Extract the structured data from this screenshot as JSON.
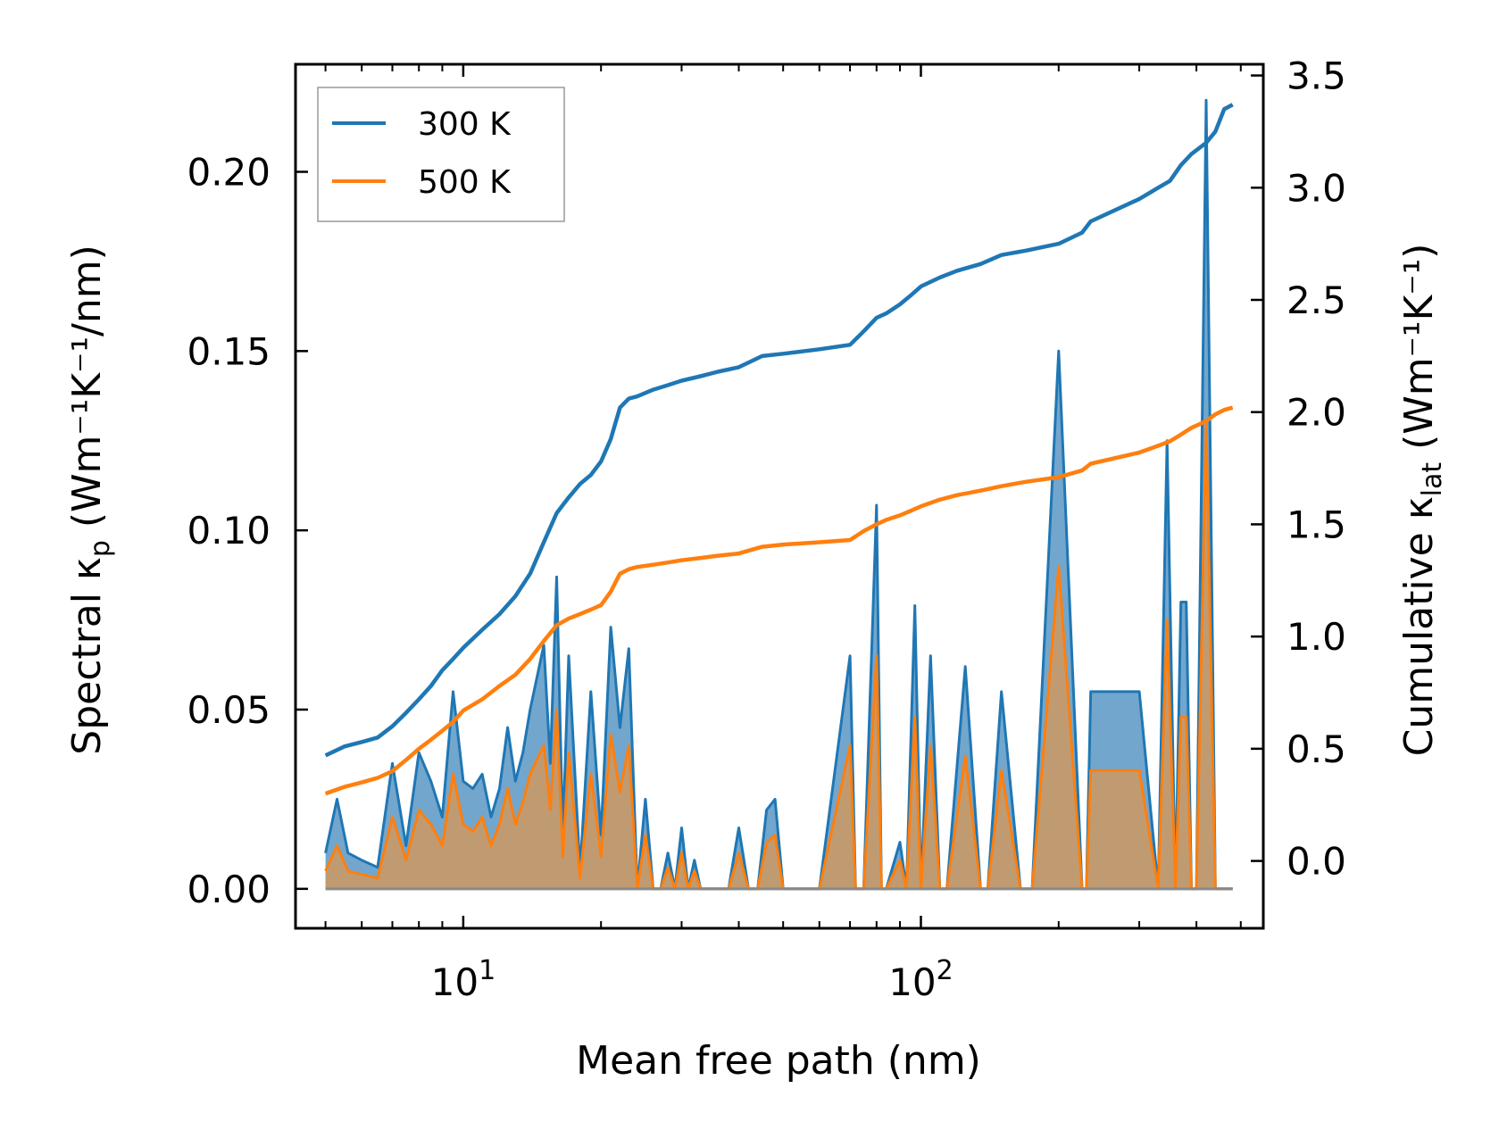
{
  "chart_data": {
    "type": "line",
    "title": "",
    "xlabel": "Mean free path (nm)",
    "ylabel_left": {
      "prefix": "Spectral κ",
      "sub": "p",
      "unit": "(Wm⁻¹K⁻¹/nm)"
    },
    "ylabel_right": {
      "prefix": "Cumulative κ",
      "sub": "lat",
      "unit": "(Wm⁻¹K⁻¹)"
    },
    "xscale": "log",
    "xlim": [
      4.3,
      560
    ],
    "ylim_left": [
      -0.011,
      0.23
    ],
    "ylim_right": [
      -0.3,
      3.55
    ],
    "x_ticks": [
      {
        "base": "10",
        "exp": "1",
        "value": 10
      },
      {
        "base": "10",
        "exp": "2",
        "value": 100
      }
    ],
    "y_ticks_left": [
      "0.00",
      "0.05",
      "0.10",
      "0.15",
      "0.20"
    ],
    "y_ticks_right": [
      "0.0",
      "0.5",
      "1.0",
      "1.5",
      "2.0",
      "2.5",
      "3.0",
      "3.5"
    ],
    "legend": {
      "placement": "top-left",
      "entries": [
        "300 K",
        "500 K"
      ]
    },
    "colors": {
      "s300": "#1f77b4",
      "s500": "#ff7f0e",
      "fill300": "#5b96c4",
      "fill500": "#c49a6c"
    },
    "spectral": {
      "axis": "left",
      "x": [
        5.0,
        5.3,
        5.6,
        6.0,
        6.5,
        7.0,
        7.5,
        8.0,
        8.5,
        9.0,
        9.5,
        10.0,
        10.5,
        11.0,
        11.5,
        12.0,
        12.5,
        13.0,
        13.5,
        14.0,
        15.0,
        15.5,
        16.0,
        16.5,
        17.0,
        18.0,
        19.0,
        20.0,
        21.0,
        22.0,
        23.0,
        24.0,
        25.0,
        26.0,
        27.0,
        28.0,
        29.0,
        30.0,
        31.0,
        32.0,
        33.0,
        34.0,
        36.0,
        38.0,
        40.0,
        42.0,
        44.0,
        46.0,
        48.0,
        50.0,
        60.0,
        70.0,
        72.0,
        75.0,
        80.0,
        82.0,
        84.0,
        90.0,
        93.0,
        97.0,
        100.0,
        105.0,
        110.0,
        114.0,
        125.0,
        135.0,
        140.0,
        150.0,
        165.0,
        170.0,
        175.0,
        200.0,
        225.0,
        230.0,
        235.0,
        300.0,
        330.0,
        345.0,
        360.0,
        370.0,
        380.0,
        390.0,
        400.0,
        420.0,
        440.0,
        460.0,
        470.0,
        480.0
      ],
      "s300": [
        0.01,
        0.025,
        0.01,
        0.008,
        0.006,
        0.035,
        0.012,
        0.038,
        0.03,
        0.02,
        0.055,
        0.03,
        0.028,
        0.032,
        0.02,
        0.028,
        0.045,
        0.03,
        0.038,
        0.05,
        0.068,
        0.035,
        0.087,
        0.015,
        0.065,
        0.005,
        0.055,
        0.015,
        0.073,
        0.045,
        0.067,
        0.0,
        0.025,
        0.0,
        0.0,
        0.01,
        0.0,
        0.017,
        0.0,
        0.008,
        0.0,
        0.0,
        0.0,
        0.0,
        0.017,
        0.0,
        0.0,
        0.022,
        0.025,
        0.0,
        0.0,
        0.065,
        0.0,
        0.0,
        0.107,
        0.0,
        0.0,
        0.013,
        0.0,
        0.079,
        0.0,
        0.065,
        0.0,
        0.0,
        0.062,
        0.0,
        0.0,
        0.055,
        0.0,
        0.0,
        0.0,
        0.15,
        0.0,
        0.0,
        0.055,
        0.055,
        0.0,
        0.125,
        0.0,
        0.08,
        0.08,
        0.0,
        0.0,
        0.22,
        0.0,
        0.0,
        0.0,
        0.0
      ],
      "s500": [
        0.005,
        0.012,
        0.005,
        0.004,
        0.003,
        0.02,
        0.008,
        0.022,
        0.018,
        0.012,
        0.032,
        0.018,
        0.016,
        0.02,
        0.012,
        0.018,
        0.028,
        0.018,
        0.024,
        0.032,
        0.04,
        0.022,
        0.05,
        0.009,
        0.038,
        0.003,
        0.032,
        0.009,
        0.043,
        0.027,
        0.04,
        0.0,
        0.015,
        0.0,
        0.0,
        0.006,
        0.0,
        0.01,
        0.0,
        0.005,
        0.0,
        0.0,
        0.0,
        0.0,
        0.01,
        0.0,
        0.0,
        0.013,
        0.015,
        0.0,
        0.0,
        0.04,
        0.0,
        0.0,
        0.065,
        0.0,
        0.0,
        0.008,
        0.0,
        0.048,
        0.0,
        0.04,
        0.0,
        0.0,
        0.037,
        0.0,
        0.0,
        0.033,
        0.0,
        0.0,
        0.0,
        0.09,
        0.0,
        0.0,
        0.033,
        0.033,
        0.0,
        0.075,
        0.0,
        0.048,
        0.048,
        0.0,
        0.0,
        0.13,
        0.0,
        0.0,
        0.0,
        0.0
      ]
    },
    "cumulative": {
      "axis": "right",
      "x": [
        5.0,
        5.5,
        6.0,
        6.5,
        7.0,
        7.5,
        8.0,
        8.5,
        9.0,
        9.5,
        10.0,
        11.0,
        12.0,
        13.0,
        14.0,
        15.0,
        16.0,
        17.0,
        18.0,
        19.0,
        20.0,
        21.0,
        22.0,
        23.0,
        24.0,
        26.0,
        28.0,
        30.0,
        33.0,
        36.0,
        40.0,
        45.0,
        50.0,
        60.0,
        70.0,
        75.0,
        80.0,
        84.0,
        90.0,
        95.0,
        100.0,
        110.0,
        120.0,
        135.0,
        150.0,
        170.0,
        200.0,
        225.0,
        235.0,
        300.0,
        330.0,
        350.0,
        370.0,
        390.0,
        420.0,
        440.0,
        460.0,
        480.0
      ],
      "s300": [
        0.47,
        0.51,
        0.53,
        0.55,
        0.6,
        0.66,
        0.72,
        0.78,
        0.85,
        0.9,
        0.95,
        1.03,
        1.1,
        1.18,
        1.28,
        1.42,
        1.55,
        1.62,
        1.68,
        1.72,
        1.78,
        1.88,
        2.02,
        2.06,
        2.07,
        2.1,
        2.12,
        2.14,
        2.16,
        2.18,
        2.2,
        2.25,
        2.26,
        2.28,
        2.3,
        2.36,
        2.42,
        2.44,
        2.48,
        2.52,
        2.56,
        2.6,
        2.63,
        2.66,
        2.7,
        2.72,
        2.75,
        2.8,
        2.85,
        2.95,
        3.0,
        3.03,
        3.1,
        3.15,
        3.2,
        3.25,
        3.35,
        3.37
      ],
      "s500": [
        0.3,
        0.33,
        0.35,
        0.37,
        0.4,
        0.45,
        0.5,
        0.54,
        0.58,
        0.62,
        0.67,
        0.72,
        0.78,
        0.83,
        0.9,
        0.98,
        1.05,
        1.08,
        1.1,
        1.12,
        1.14,
        1.2,
        1.28,
        1.3,
        1.31,
        1.32,
        1.33,
        1.34,
        1.35,
        1.36,
        1.37,
        1.4,
        1.41,
        1.42,
        1.43,
        1.47,
        1.5,
        1.52,
        1.54,
        1.56,
        1.58,
        1.61,
        1.63,
        1.65,
        1.67,
        1.69,
        1.71,
        1.74,
        1.77,
        1.82,
        1.85,
        1.87,
        1.9,
        1.93,
        1.96,
        1.99,
        2.01,
        2.02
      ]
    }
  }
}
